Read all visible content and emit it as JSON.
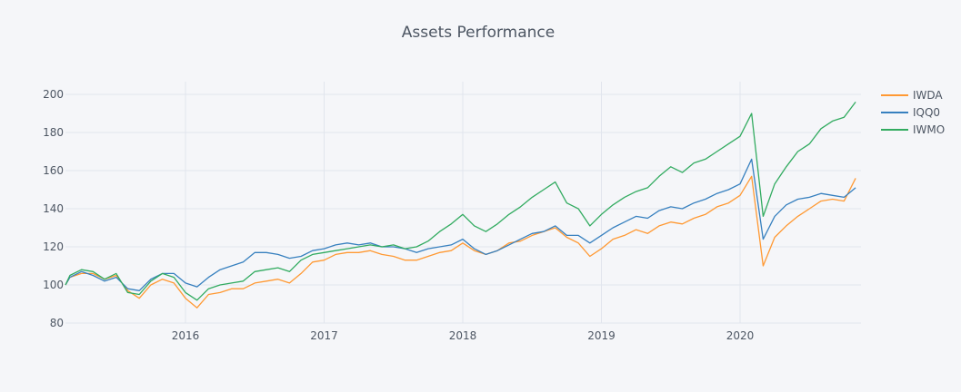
{
  "chart_data": {
    "type": "line",
    "title": "Assets Performance",
    "xlabel": "",
    "ylabel": "",
    "ylim": [
      80,
      205
    ],
    "xlim": [
      "2015-02",
      "2020-11"
    ],
    "grid": true,
    "legend_position": "top-right",
    "y_ticks": [
      80,
      100,
      120,
      140,
      160,
      180,
      200
    ],
    "x_ticks": [
      "2016",
      "2017",
      "2018",
      "2019",
      "2020"
    ],
    "x": [
      "2015-02",
      "2015-03",
      "2015-04",
      "2015-05",
      "2015-06",
      "2015-07",
      "2015-08",
      "2015-09",
      "2015-10",
      "2015-11",
      "2015-12",
      "2016-01",
      "2016-02",
      "2016-03",
      "2016-04",
      "2016-05",
      "2016-06",
      "2016-07",
      "2016-08",
      "2016-09",
      "2016-10",
      "2016-11",
      "2016-12",
      "2017-01",
      "2017-02",
      "2017-03",
      "2017-04",
      "2017-05",
      "2017-06",
      "2017-07",
      "2017-08",
      "2017-09",
      "2017-10",
      "2017-11",
      "2017-12",
      "2018-01",
      "2018-02",
      "2018-03",
      "2018-04",
      "2018-05",
      "2018-06",
      "2018-07",
      "2018-08",
      "2018-09",
      "2018-10",
      "2018-11",
      "2018-12",
      "2019-01",
      "2019-02",
      "2019-03",
      "2019-04",
      "2019-05",
      "2019-06",
      "2019-07",
      "2019-08",
      "2019-09",
      "2019-10",
      "2019-11",
      "2019-12",
      "2020-01",
      "2020-02",
      "2020-03",
      "2020-04",
      "2020-05",
      "2020-06",
      "2020-07",
      "2020-08",
      "2020-09",
      "2020-10",
      "2020-11"
    ],
    "series": [
      {
        "name": "IWDA",
        "color": "#FF9933",
        "values": [
          100,
          104,
          106,
          106,
          103,
          105,
          97,
          93,
          100,
          103,
          101,
          93,
          88,
          95,
          96,
          98,
          98,
          101,
          102,
          103,
          101,
          106,
          112,
          113,
          116,
          117,
          117,
          118,
          116,
          115,
          113,
          113,
          115,
          117,
          118,
          122,
          118,
          116,
          118,
          122,
          123,
          126,
          128,
          130,
          125,
          122,
          115,
          119,
          124,
          126,
          129,
          127,
          131,
          133,
          132,
          135,
          137,
          141,
          143,
          147,
          157,
          110,
          125,
          131,
          136,
          140,
          144,
          145,
          144,
          156
        ]
      },
      {
        "name": "IQQ0",
        "color": "#3780BF",
        "values": [
          100,
          104,
          107,
          105,
          102,
          104,
          98,
          97,
          103,
          106,
          106,
          101,
          99,
          104,
          108,
          110,
          112,
          117,
          117,
          116,
          114,
          115,
          118,
          119,
          121,
          122,
          121,
          122,
          120,
          120,
          119,
          117,
          119,
          120,
          121,
          124,
          119,
          116,
          118,
          121,
          124,
          127,
          128,
          131,
          126,
          126,
          122,
          126,
          130,
          133,
          136,
          135,
          139,
          141,
          140,
          143,
          145,
          148,
          150,
          153,
          166,
          124,
          136,
          142,
          145,
          146,
          148,
          147,
          146,
          151
        ]
      },
      {
        "name": "IWMO",
        "color": "#32AB60",
        "values": [
          100,
          105,
          108,
          107,
          103,
          106,
          96,
          95,
          102,
          106,
          104,
          96,
          92,
          98,
          100,
          101,
          102,
          107,
          108,
          109,
          107,
          113,
          116,
          117,
          118,
          119,
          120,
          121,
          120,
          121,
          119,
          120,
          123,
          128,
          132,
          137,
          131,
          128,
          132,
          137,
          141,
          146,
          150,
          154,
          143,
          140,
          131,
          137,
          142,
          146,
          149,
          151,
          157,
          162,
          159,
          164,
          166,
          170,
          174,
          178,
          190,
          136,
          153,
          162,
          170,
          174,
          182,
          186,
          188,
          196
        ]
      }
    ]
  }
}
